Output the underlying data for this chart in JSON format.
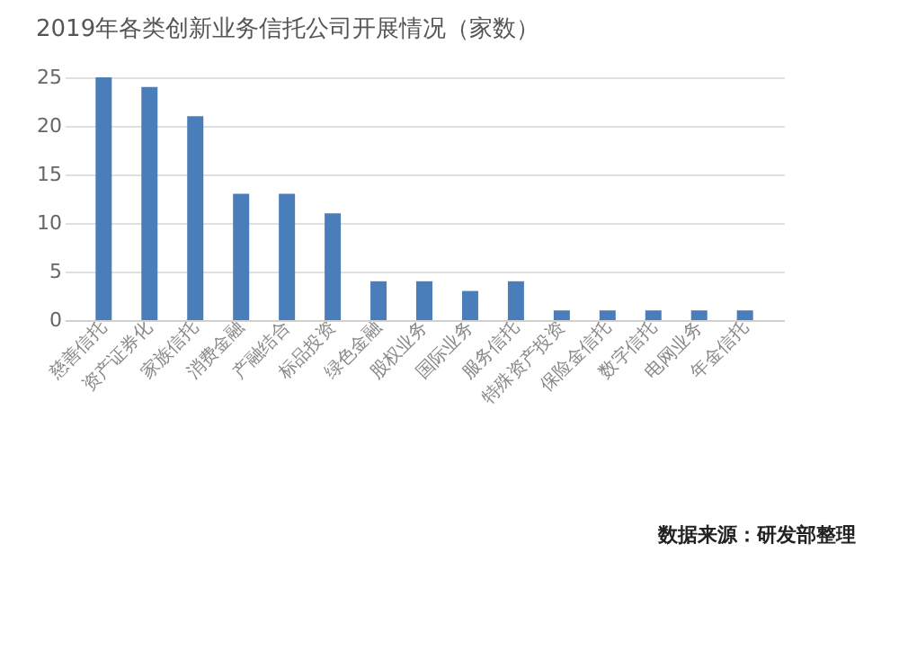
{
  "chart_data": {
    "type": "bar",
    "title": "2019年各类创新业务信托公司开展情况（家数）",
    "categories": [
      "慈善信托",
      "资产证券化",
      "家族信托",
      "消费金融",
      "产融结合",
      "标品投资",
      "绿色金融",
      "股权业务",
      "国际业务",
      "服务信托",
      "特殊资产投资",
      "保险金信托",
      "数字信托",
      "电网业务",
      "年金信托"
    ],
    "values": [
      25,
      24,
      21,
      13,
      13,
      11,
      4,
      4,
      3,
      4,
      1,
      1,
      1,
      1,
      1
    ],
    "color": "#4a7ebb",
    "ylim": [
      0,
      25
    ],
    "yticks": [
      0,
      5,
      10,
      15,
      20,
      25
    ],
    "grid": "y",
    "annotations": [
      "数据来源：研发部整理"
    ]
  }
}
